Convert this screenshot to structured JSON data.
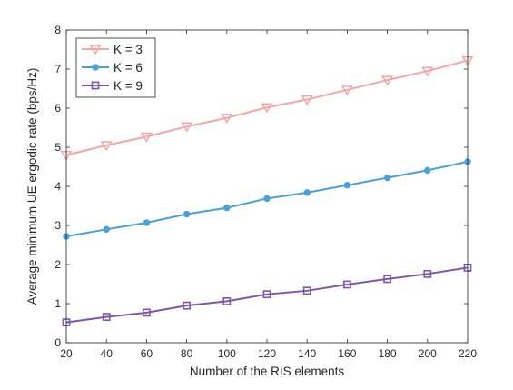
{
  "chart_data": {
    "type": "line",
    "title": "",
    "xlabel": "Number of the RIS elements",
    "ylabel": "Average minimum UE ergodic rate (bps/Hz)",
    "x": [
      20,
      40,
      60,
      80,
      100,
      120,
      140,
      160,
      180,
      200,
      220
    ],
    "xlim": [
      20,
      220
    ],
    "ylim": [
      0,
      8
    ],
    "xticks": [
      "20",
      "40",
      "60",
      "80",
      "100",
      "120",
      "140",
      "160",
      "180",
      "200",
      "220"
    ],
    "yticks": [
      "0",
      "1",
      "2",
      "3",
      "4",
      "5",
      "6",
      "7",
      "8"
    ],
    "grid": false,
    "legend_position": "top-left",
    "series": [
      {
        "name": "K = 3",
        "color": "#f4a6a6",
        "marker": "triangle-down",
        "values": [
          4.8,
          5.05,
          5.27,
          5.53,
          5.75,
          6.02,
          6.22,
          6.47,
          6.72,
          6.95,
          7.22
        ]
      },
      {
        "name": "K = 6",
        "color": "#4aa0d8",
        "marker": "circle",
        "values": [
          2.72,
          2.9,
          3.07,
          3.29,
          3.45,
          3.69,
          3.84,
          4.03,
          4.22,
          4.41,
          4.63
        ]
      },
      {
        "name": "K = 9",
        "color": "#7e57a8",
        "marker": "square",
        "values": [
          0.52,
          0.66,
          0.77,
          0.95,
          1.06,
          1.24,
          1.33,
          1.49,
          1.63,
          1.76,
          1.92
        ]
      }
    ]
  }
}
